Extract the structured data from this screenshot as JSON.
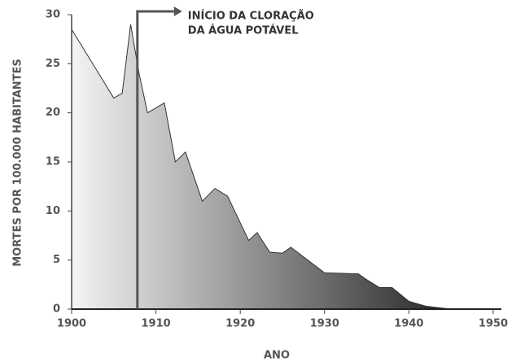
{
  "chart_data": {
    "type": "area",
    "x": [
      1900,
      1905,
      1906,
      1907,
      1908,
      1909,
      1911,
      1912.3,
      1913.5,
      1915.5,
      1917,
      1918.5,
      1921,
      1922,
      1923.5,
      1925,
      1926,
      1928,
      1930,
      1934,
      1935,
      1936.5,
      1938,
      1940,
      1942,
      1945
    ],
    "values": [
      28.5,
      21.5,
      22,
      29,
      24,
      20,
      21,
      15,
      16,
      11,
      12.3,
      11.5,
      7,
      7.8,
      5.8,
      5.7,
      6.3,
      5,
      3.7,
      3.6,
      3,
      2.2,
      2.2,
      0.8,
      0.3,
      0
    ],
    "xlim": [
      1900,
      1950
    ],
    "xticks": [
      1900,
      1910,
      1920,
      1930,
      1940,
      1950
    ],
    "ylim": [
      0,
      30
    ],
    "yticks": [
      0,
      5,
      10,
      15,
      20,
      25,
      30
    ],
    "xlabel": "ANO",
    "ylabel": "MORTES POR 100.000 HABITANTES",
    "annotation": {
      "x": 1907.8,
      "lines": [
        "INÍCIO DA CLORAÇÃO",
        "DA ÁGUA POTÁVEL"
      ]
    },
    "color_start": "#f4f4f4",
    "color_end": "#262626"
  }
}
